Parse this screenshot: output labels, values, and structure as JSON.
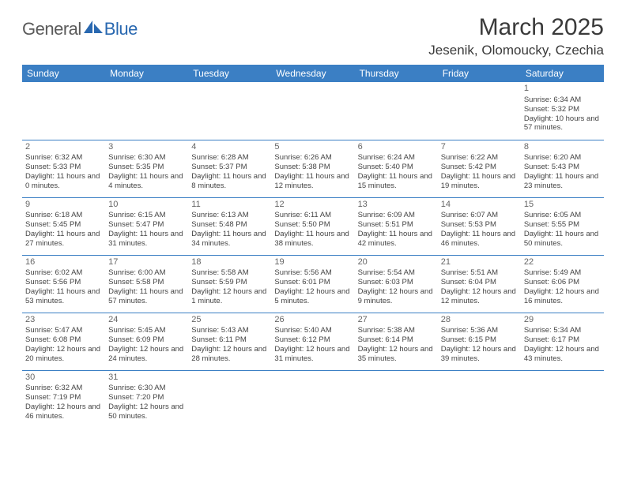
{
  "logo": {
    "part1": "General",
    "part2": "Blue"
  },
  "title": "March 2025",
  "location": "Jesenik, Olomoucky, Czechia",
  "colors": {
    "header_bg": "#3b7fc4",
    "header_fg": "#ffffff",
    "border": "#3b7fc4",
    "logo_gray": "#5a5a5a",
    "logo_blue": "#2968b0"
  },
  "weekdays": [
    "Sunday",
    "Monday",
    "Tuesday",
    "Wednesday",
    "Thursday",
    "Friday",
    "Saturday"
  ],
  "weeks": [
    [
      null,
      null,
      null,
      null,
      null,
      null,
      {
        "n": "1",
        "sr": "6:34 AM",
        "ss": "5:32 PM",
        "dl": "10 hours and 57 minutes."
      }
    ],
    [
      {
        "n": "2",
        "sr": "6:32 AM",
        "ss": "5:33 PM",
        "dl": "11 hours and 0 minutes."
      },
      {
        "n": "3",
        "sr": "6:30 AM",
        "ss": "5:35 PM",
        "dl": "11 hours and 4 minutes."
      },
      {
        "n": "4",
        "sr": "6:28 AM",
        "ss": "5:37 PM",
        "dl": "11 hours and 8 minutes."
      },
      {
        "n": "5",
        "sr": "6:26 AM",
        "ss": "5:38 PM",
        "dl": "11 hours and 12 minutes."
      },
      {
        "n": "6",
        "sr": "6:24 AM",
        "ss": "5:40 PM",
        "dl": "11 hours and 15 minutes."
      },
      {
        "n": "7",
        "sr": "6:22 AM",
        "ss": "5:42 PM",
        "dl": "11 hours and 19 minutes."
      },
      {
        "n": "8",
        "sr": "6:20 AM",
        "ss": "5:43 PM",
        "dl": "11 hours and 23 minutes."
      }
    ],
    [
      {
        "n": "9",
        "sr": "6:18 AM",
        "ss": "5:45 PM",
        "dl": "11 hours and 27 minutes."
      },
      {
        "n": "10",
        "sr": "6:15 AM",
        "ss": "5:47 PM",
        "dl": "11 hours and 31 minutes."
      },
      {
        "n": "11",
        "sr": "6:13 AM",
        "ss": "5:48 PM",
        "dl": "11 hours and 34 minutes."
      },
      {
        "n": "12",
        "sr": "6:11 AM",
        "ss": "5:50 PM",
        "dl": "11 hours and 38 minutes."
      },
      {
        "n": "13",
        "sr": "6:09 AM",
        "ss": "5:51 PM",
        "dl": "11 hours and 42 minutes."
      },
      {
        "n": "14",
        "sr": "6:07 AM",
        "ss": "5:53 PM",
        "dl": "11 hours and 46 minutes."
      },
      {
        "n": "15",
        "sr": "6:05 AM",
        "ss": "5:55 PM",
        "dl": "11 hours and 50 minutes."
      }
    ],
    [
      {
        "n": "16",
        "sr": "6:02 AM",
        "ss": "5:56 PM",
        "dl": "11 hours and 53 minutes."
      },
      {
        "n": "17",
        "sr": "6:00 AM",
        "ss": "5:58 PM",
        "dl": "11 hours and 57 minutes."
      },
      {
        "n": "18",
        "sr": "5:58 AM",
        "ss": "5:59 PM",
        "dl": "12 hours and 1 minute."
      },
      {
        "n": "19",
        "sr": "5:56 AM",
        "ss": "6:01 PM",
        "dl": "12 hours and 5 minutes."
      },
      {
        "n": "20",
        "sr": "5:54 AM",
        "ss": "6:03 PM",
        "dl": "12 hours and 9 minutes."
      },
      {
        "n": "21",
        "sr": "5:51 AM",
        "ss": "6:04 PM",
        "dl": "12 hours and 12 minutes."
      },
      {
        "n": "22",
        "sr": "5:49 AM",
        "ss": "6:06 PM",
        "dl": "12 hours and 16 minutes."
      }
    ],
    [
      {
        "n": "23",
        "sr": "5:47 AM",
        "ss": "6:08 PM",
        "dl": "12 hours and 20 minutes."
      },
      {
        "n": "24",
        "sr": "5:45 AM",
        "ss": "6:09 PM",
        "dl": "12 hours and 24 minutes."
      },
      {
        "n": "25",
        "sr": "5:43 AM",
        "ss": "6:11 PM",
        "dl": "12 hours and 28 minutes."
      },
      {
        "n": "26",
        "sr": "5:40 AM",
        "ss": "6:12 PM",
        "dl": "12 hours and 31 minutes."
      },
      {
        "n": "27",
        "sr": "5:38 AM",
        "ss": "6:14 PM",
        "dl": "12 hours and 35 minutes."
      },
      {
        "n": "28",
        "sr": "5:36 AM",
        "ss": "6:15 PM",
        "dl": "12 hours and 39 minutes."
      },
      {
        "n": "29",
        "sr": "5:34 AM",
        "ss": "6:17 PM",
        "dl": "12 hours and 43 minutes."
      }
    ],
    [
      {
        "n": "30",
        "sr": "6:32 AM",
        "ss": "7:19 PM",
        "dl": "12 hours and 46 minutes."
      },
      {
        "n": "31",
        "sr": "6:30 AM",
        "ss": "7:20 PM",
        "dl": "12 hours and 50 minutes."
      },
      null,
      null,
      null,
      null,
      null
    ]
  ],
  "labels": {
    "sunrise": "Sunrise:",
    "sunset": "Sunset:",
    "daylight": "Daylight:"
  }
}
